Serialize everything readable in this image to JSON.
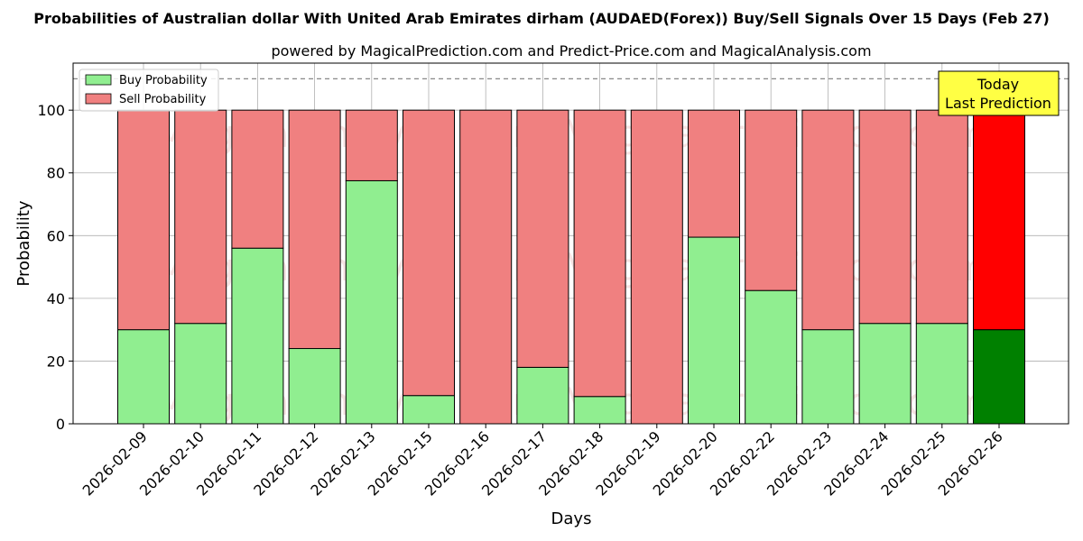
{
  "chart_data": {
    "type": "bar",
    "stacked": true,
    "title": "Probabilities of Australian dollar With United Arab Emirates dirham (AUDAED(Forex)) Buy/Sell Signals Over 15 Days (Feb 27)",
    "subtitle": "powered by MagicalPrediction.com and Predict-Price.com and MagicalAnalysis.com",
    "xlabel": "Days",
    "ylabel": "Probability",
    "ylim": [
      0,
      115
    ],
    "yticks": [
      0,
      20,
      40,
      60,
      80,
      100
    ],
    "reference_line": 110,
    "grid": true,
    "legend_position": "top-left",
    "categories": [
      "2026-02-09",
      "2026-02-10",
      "2026-02-11",
      "2026-02-12",
      "2026-02-13",
      "2026-02-15",
      "2026-02-16",
      "2026-02-17",
      "2026-02-18",
      "2026-02-19",
      "2026-02-20",
      "2026-02-22",
      "2026-02-23",
      "2026-02-24",
      "2026-02-25",
      "2026-02-26"
    ],
    "series": [
      {
        "name": "Buy Probability",
        "color": "#90EE90",
        "highlight_color": "#008000",
        "values": [
          30,
          32,
          56,
          24,
          77.5,
          9,
          0,
          18,
          8.7,
          0,
          59.5,
          42.5,
          30,
          32,
          32,
          30
        ]
      },
      {
        "name": "Sell Probability",
        "color": "#F08080",
        "highlight_color": "#FF0000",
        "values": [
          70,
          68,
          44,
          76,
          22.5,
          91,
          100,
          82,
          91.3,
          100,
          40.5,
          57.5,
          70,
          68,
          68,
          70
        ]
      }
    ],
    "highlight_index": 15,
    "annotation": {
      "line1": "Today",
      "line2": "Last Prediction",
      "bg": "#FFFF44"
    },
    "watermark": "MagicalAnalysis.com    MagicalPrediction.com"
  }
}
